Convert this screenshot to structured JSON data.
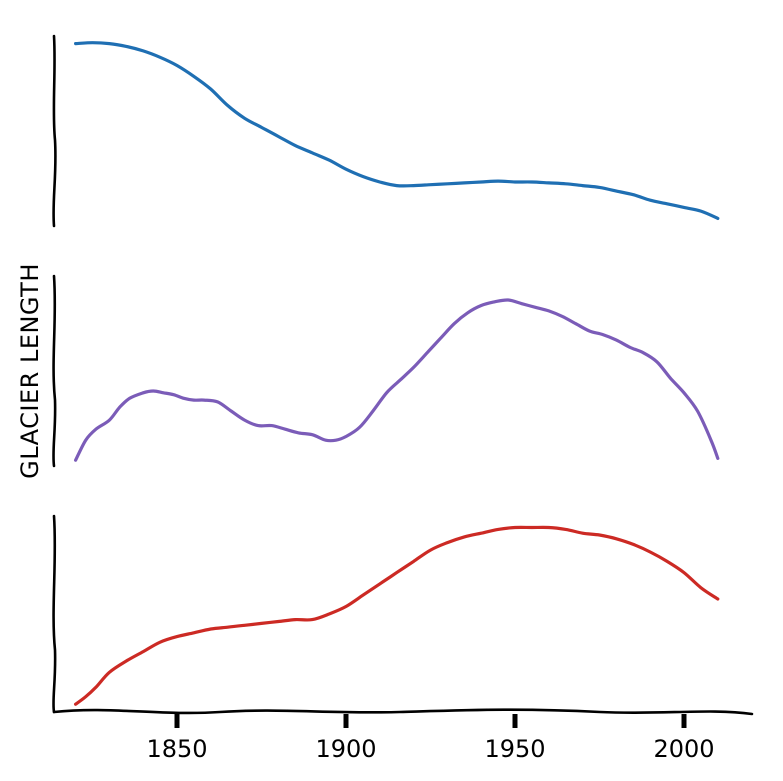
{
  "chart_data": {
    "type": "line",
    "ylabel": "GLACIER LENGTH",
    "xlabel": "",
    "title": "",
    "x_ticks": [
      1850,
      1900,
      1950,
      2000
    ],
    "x_tick_labels": [
      "1850",
      "1900",
      "1950",
      "2000"
    ],
    "xlim": [
      1810,
      2020
    ],
    "grid": false,
    "legend": "none",
    "panels": 3,
    "series": [
      {
        "color": "#1f6fb3",
        "panel": 1,
        "ylim": [
          0,
          1
        ],
        "x": [
          1820,
          1825,
          1830,
          1835,
          1840,
          1845,
          1850,
          1855,
          1860,
          1865,
          1870,
          1875,
          1880,
          1885,
          1890,
          1895,
          1900,
          1905,
          1910,
          1915,
          1920,
          1925,
          1930,
          1935,
          1940,
          1945,
          1950,
          1955,
          1960,
          1965,
          1970,
          1975,
          1980,
          1985,
          1990,
          1995,
          2000,
          2005,
          2010
        ],
        "values": [
          0.98,
          0.985,
          0.98,
          0.965,
          0.94,
          0.905,
          0.86,
          0.8,
          0.73,
          0.64,
          0.57,
          0.52,
          0.47,
          0.42,
          0.38,
          0.34,
          0.29,
          0.25,
          0.22,
          0.2,
          0.2,
          0.205,
          0.21,
          0.215,
          0.22,
          0.225,
          0.22,
          0.22,
          0.215,
          0.21,
          0.2,
          0.19,
          0.17,
          0.15,
          0.12,
          0.1,
          0.08,
          0.06,
          0.02
        ]
      },
      {
        "color": "#7b5cb8",
        "panel": 2,
        "ylim": [
          0,
          1
        ],
        "x": [
          1820,
          1823,
          1826,
          1830,
          1833,
          1836,
          1840,
          1843,
          1846,
          1849,
          1852,
          1855,
          1858,
          1862,
          1866,
          1870,
          1874,
          1878,
          1882,
          1886,
          1890,
          1894,
          1897,
          1900,
          1904,
          1908,
          1912,
          1916,
          1920,
          1924,
          1928,
          1932,
          1936,
          1940,
          1944,
          1948,
          1952,
          1956,
          1960,
          1964,
          1968,
          1972,
          1976,
          1980,
          1984,
          1988,
          1992,
          1996,
          2000,
          2004,
          2008,
          2010
        ],
        "values": [
          0.01,
          0.12,
          0.18,
          0.23,
          0.3,
          0.35,
          0.38,
          0.39,
          0.38,
          0.37,
          0.35,
          0.34,
          0.34,
          0.33,
          0.28,
          0.23,
          0.2,
          0.2,
          0.18,
          0.16,
          0.15,
          0.12,
          0.12,
          0.14,
          0.19,
          0.28,
          0.38,
          0.45,
          0.52,
          0.6,
          0.68,
          0.76,
          0.82,
          0.86,
          0.88,
          0.89,
          0.87,
          0.85,
          0.83,
          0.8,
          0.76,
          0.72,
          0.7,
          0.67,
          0.63,
          0.6,
          0.55,
          0.46,
          0.38,
          0.28,
          0.12,
          0.02
        ]
      },
      {
        "color": "#cc2a24",
        "panel": 3,
        "ylim": [
          0,
          1
        ],
        "x": [
          1820,
          1823,
          1826,
          1830,
          1835,
          1840,
          1845,
          1850,
          1855,
          1860,
          1865,
          1870,
          1875,
          1880,
          1885,
          1890,
          1895,
          1900,
          1905,
          1910,
          1915,
          1920,
          1925,
          1930,
          1935,
          1940,
          1945,
          1950,
          1955,
          1960,
          1965,
          1970,
          1975,
          1980,
          1985,
          1990,
          1995,
          2000,
          2005,
          2010
        ],
        "values": [
          0.02,
          0.06,
          0.11,
          0.19,
          0.25,
          0.3,
          0.35,
          0.38,
          0.4,
          0.42,
          0.43,
          0.44,
          0.45,
          0.46,
          0.47,
          0.47,
          0.5,
          0.54,
          0.6,
          0.66,
          0.72,
          0.78,
          0.84,
          0.88,
          0.91,
          0.93,
          0.95,
          0.96,
          0.96,
          0.96,
          0.95,
          0.93,
          0.92,
          0.9,
          0.87,
          0.83,
          0.78,
          0.72,
          0.64,
          0.58
        ]
      }
    ]
  }
}
